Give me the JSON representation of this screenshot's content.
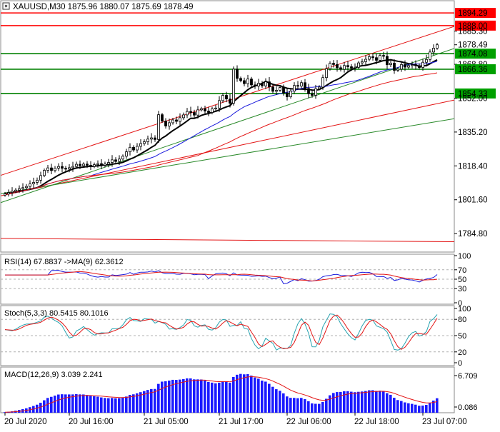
{
  "chart_data": {
    "type": "candlestick",
    "main": {
      "title": "XAUUSD,M30  1875.96 1880.07 1875.69 1878.49",
      "ylim": [
        1776,
        1900
      ],
      "y_ticks": [
        "1835.20",
        "1818.40",
        "1801.60",
        "1784.80"
      ],
      "right_labels": [
        {
          "text": "1894.29",
          "value": 1894.29,
          "bg": "#ff0000",
          "fg": "#000000"
        },
        {
          "text": "1888.00",
          "value": 1888.0,
          "bg": "#ff0000",
          "fg": "#000000"
        },
        {
          "text": "1885.30",
          "value": 1885.3,
          "bg": "#ffffff",
          "fg": "#000000"
        },
        {
          "text": "1878.49",
          "value": 1878.49,
          "bg": "#ffffff",
          "fg": "#000000"
        },
        {
          "text": "1874.08",
          "value": 1874.08,
          "bg": "#00a000",
          "fg": "#000000"
        },
        {
          "text": "1868.80",
          "value": 1868.8,
          "bg": "#ffffff",
          "fg": "#000000"
        },
        {
          "text": "1866.36",
          "value": 1866.36,
          "bg": "#00a000",
          "fg": "#000000"
        },
        {
          "text": "1854.33",
          "value": 1854.33,
          "bg": "#00a000",
          "fg": "#000000"
        },
        {
          "text": "1852.00",
          "value": 1852.0,
          "bg": "#ffffff",
          "fg": "#000000"
        }
      ],
      "horizontal_lines": [
        {
          "value": 1894.29,
          "color": "#ff0000"
        },
        {
          "value": 1888.0,
          "color": "#ff0000"
        },
        {
          "value": 1874.08,
          "color": "#008000"
        },
        {
          "value": 1866.36,
          "color": "#008000"
        },
        {
          "value": 1854.33,
          "color": "#008000"
        }
      ],
      "close": [
        1804.5,
        1805.2,
        1805.8,
        1806.4,
        1807.1,
        1807.6,
        1808.2,
        1809.5,
        1810.2,
        1811.3,
        1813.6,
        1816.2,
        1817.4,
        1816.1,
        1817.3,
        1818.1,
        1817.2,
        1816.8,
        1817.5,
        1818.1,
        1819.2,
        1818.5,
        1819.3,
        1818.7,
        1818.2,
        1819.0,
        1819.5,
        1818.7,
        1819.3,
        1820.1,
        1821.4,
        1820.6,
        1821.8,
        1823.2,
        1825.4,
        1827.6,
        1826.3,
        1828.1,
        1829.5,
        1830.4,
        1831.7,
        1832.3,
        1831.5,
        1843.8,
        1840.6,
        1838.2,
        1839.8,
        1841.2,
        1840.5,
        1842.3,
        1843.7,
        1845.4,
        1844.9,
        1843.6,
        1846.2,
        1846.8,
        1845.6,
        1844.9,
        1846.7,
        1847.1,
        1850.8,
        1853.4,
        1851.6,
        1849.5,
        1866.4,
        1861.8,
        1860.7,
        1859.2,
        1861.5,
        1858.6,
        1858.0,
        1859.4,
        1858.1,
        1860.1,
        1857.6,
        1855.4,
        1855.9,
        1857.3,
        1854.6,
        1852.7,
        1855.5,
        1858.3,
        1858.0,
        1859.7,
        1856.8,
        1854.2,
        1853.4,
        1856.7,
        1857.5,
        1862.2,
        1866.6,
        1869.3,
        1868.7,
        1867.1,
        1866.3,
        1868.2,
        1867.6,
        1866.9,
        1867.3,
        1869.5,
        1870.1,
        1871.3,
        1872.6,
        1872.1,
        1870.8,
        1873.2,
        1872.8,
        1868.6,
        1869.4,
        1865.8,
        1866.4,
        1868.7,
        1867.4,
        1868.2,
        1868.6,
        1868.1,
        1867.2,
        1869.8,
        1871.2,
        1874.9,
        1876.8,
        1878.49
      ],
      "moving_averages": [
        {
          "period": 10,
          "color": "#000000",
          "width": 2.0
        },
        {
          "period": 25,
          "color": "#1a1adc",
          "width": 1.0
        },
        {
          "period": 55,
          "color": "#e31414",
          "width": 1.0
        }
      ],
      "trendlines": [
        {
          "color": "#e31414",
          "from": [
            0,
            1814.4
          ],
          "to": [
            123,
            1886.0
          ]
        },
        {
          "color": "#e31414",
          "from": [
            0,
            1804.0
          ],
          "to": [
            123,
            1850.0
          ]
        },
        {
          "color": "#2a8a2a",
          "from": [
            0,
            1805.0
          ],
          "to": [
            123,
            1841.0
          ]
        },
        {
          "color": "#2a8a2a",
          "from": [
            40,
            1825.0
          ],
          "to": [
            123,
            1875.0
          ]
        },
        {
          "color": "#e31414",
          "from": [
            0,
            1782.4
          ],
          "to": [
            123,
            1780.8
          ]
        }
      ]
    },
    "x_labels": [
      {
        "text": "20 Jul 2020",
        "bar": 0
      },
      {
        "text": "20 Jul 16:00",
        "bar": 18
      },
      {
        "text": "21 Jul 05:00",
        "bar": 39
      },
      {
        "text": "21 Jul 17:00",
        "bar": 60
      },
      {
        "text": "22 Jul 06:00",
        "bar": 79
      },
      {
        "text": "22 Jul 18:00",
        "bar": 98
      },
      {
        "text": "23 Jul 07:00",
        "bar": 117
      }
    ],
    "rsi": {
      "label": "RSI(14) 67.8837  ->MA(9) 62.3612",
      "levels": [
        70,
        50,
        30
      ],
      "right_ticks": [
        "100",
        "70",
        "50",
        "30",
        "0"
      ],
      "line_color": "#1a1adc",
      "ma_color": "#e31414"
    },
    "stoch": {
      "label": "Stoch(5,3,3) 80.5415 80.1016",
      "levels": [
        80,
        50,
        20
      ],
      "right_ticks": [
        "100",
        "80",
        "50",
        "20",
        "0"
      ],
      "main_color": "#27a3b0",
      "signal_color": "#e31414"
    },
    "macd": {
      "label": "MACD(12,26,9) 3.039 2.241",
      "right_ticks": [
        "6.709",
        "0.086"
      ],
      "ylim": [
        0,
        7
      ],
      "bar_color": "#1a1aff",
      "signal_color": "#e31414"
    }
  }
}
